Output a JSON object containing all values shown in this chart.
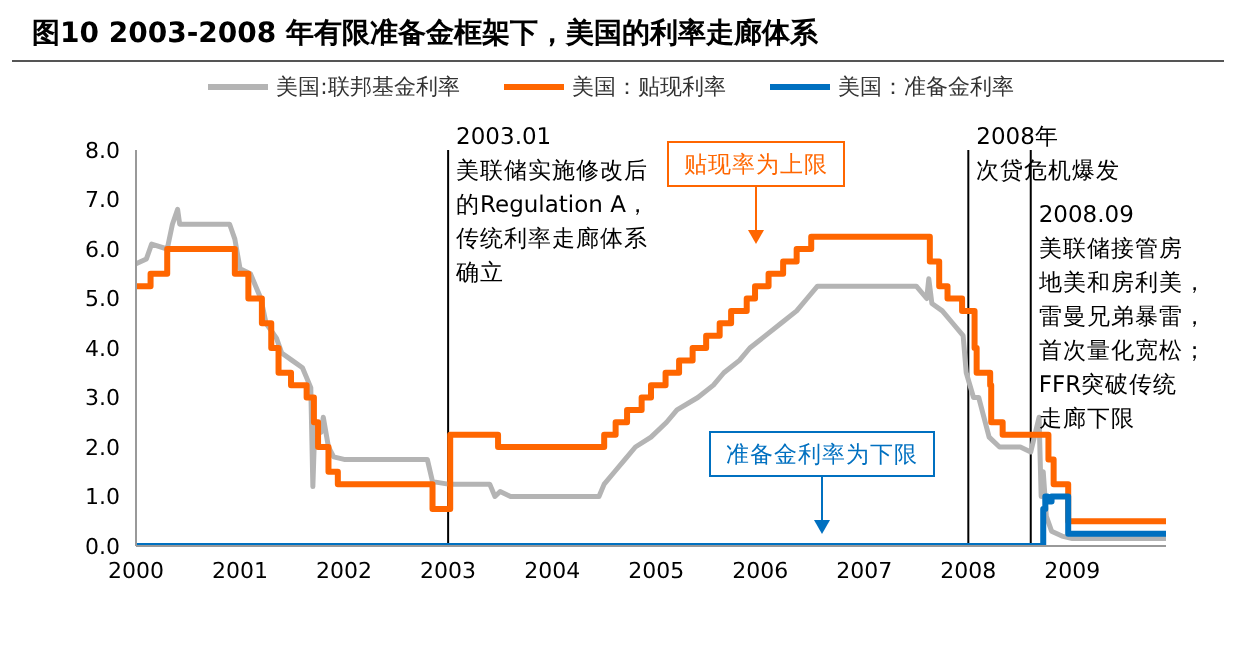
{
  "chart_data": {
    "type": "line",
    "title": "图10 2003-2008 年有限准备金框架下，美国的利率走廊体系",
    "xlim": [
      2000,
      2009.9
    ],
    "xticks": [
      2000,
      2001,
      2002,
      2003,
      2004,
      2005,
      2006,
      2007,
      2008,
      2009
    ],
    "ylim": [
      0,
      8
    ],
    "yticks": [
      {
        "value": 0,
        "label": "0.0"
      },
      {
        "value": 1,
        "label": "1.0"
      },
      {
        "value": 2,
        "label": "2.0"
      },
      {
        "value": 3,
        "label": "3.0"
      },
      {
        "value": 4,
        "label": "4.0"
      },
      {
        "value": 5,
        "label": "5.0"
      },
      {
        "value": 6,
        "label": "6.0"
      },
      {
        "value": 7,
        "label": "7.0"
      },
      {
        "value": 8,
        "label": "8.0"
      }
    ],
    "grid": false,
    "legend": "top",
    "marker": "none",
    "series": [
      {
        "name": "美国:联邦基金利率",
        "color": "#b4b4b4",
        "x": [
          2000.0,
          2000.1,
          2000.15,
          2000.3,
          2000.35,
          2000.4,
          2000.42,
          2000.5,
          2000.9,
          2000.95,
          2001.0,
          2001.1,
          2001.2,
          2001.25,
          2001.35,
          2001.4,
          2001.5,
          2001.6,
          2001.68,
          2001.7,
          2001.72,
          2001.78,
          2001.8,
          2001.85,
          2001.9,
          2002.0,
          2002.5,
          2002.8,
          2002.85,
          2003.0,
          2003.4,
          2003.45,
          2003.5,
          2003.6,
          2004.0,
          2004.45,
          2004.5,
          2004.6,
          2004.7,
          2004.8,
          2004.95,
          2005.1,
          2005.2,
          2005.4,
          2005.55,
          2005.65,
          2005.8,
          2005.9,
          2006.05,
          2006.2,
          2006.35,
          2006.45,
          2006.55,
          2007.0,
          2007.5,
          2007.6,
          2007.62,
          2007.65,
          2007.75,
          2007.85,
          2007.95,
          2007.98,
          2008.05,
          2008.1,
          2008.2,
          2008.3,
          2008.5,
          2008.6,
          2008.68,
          2008.7,
          2008.72,
          2008.75,
          2008.8,
          2008.9,
          2009.0,
          2009.9
        ],
        "values": [
          5.7,
          5.8,
          6.1,
          6.0,
          6.5,
          6.8,
          6.5,
          6.5,
          6.5,
          6.2,
          5.6,
          5.5,
          5.0,
          4.5,
          4.2,
          3.9,
          3.75,
          3.6,
          3.2,
          1.2,
          2.5,
          2.3,
          2.6,
          2.0,
          1.8,
          1.75,
          1.75,
          1.75,
          1.3,
          1.25,
          1.25,
          1.0,
          1.1,
          1.0,
          1.0,
          1.0,
          1.25,
          1.5,
          1.75,
          2.0,
          2.2,
          2.5,
          2.75,
          3.0,
          3.25,
          3.5,
          3.75,
          4.0,
          4.25,
          4.5,
          4.75,
          5.0,
          5.25,
          5.25,
          5.25,
          5.0,
          5.4,
          4.9,
          4.75,
          4.5,
          4.25,
          3.5,
          3.0,
          3.0,
          2.2,
          2.0,
          2.0,
          1.9,
          2.6,
          1.0,
          1.5,
          0.6,
          0.3,
          0.2,
          0.15,
          0.15
        ]
      },
      {
        "name": "美国：贴现利率",
        "color": "#ff6600",
        "type": "step",
        "x": [
          2000.0,
          2000.14,
          2000.3,
          2000.95,
          2001.08,
          2001.21,
          2001.3,
          2001.37,
          2001.49,
          2001.64,
          2001.71,
          2001.75,
          2001.85,
          2001.94,
          2002.85,
          2003.02,
          2003.48,
          2004.5,
          2004.61,
          2004.72,
          2004.86,
          2004.95,
          2005.09,
          2005.22,
          2005.35,
          2005.48,
          2005.61,
          2005.72,
          2005.87,
          2005.95,
          2006.08,
          2006.22,
          2006.35,
          2006.49,
          2007.63,
          2007.72,
          2007.8,
          2007.94,
          2008.06,
          2008.08,
          2008.21,
          2008.22,
          2008.33,
          2008.77,
          2008.82,
          2008.96,
          2009.9
        ],
        "values": [
          5.25,
          5.5,
          6.0,
          5.5,
          5.0,
          4.5,
          4.0,
          3.5,
          3.25,
          3.0,
          2.5,
          2.0,
          1.5,
          1.25,
          0.75,
          2.25,
          2.0,
          2.25,
          2.5,
          2.75,
          3.0,
          3.25,
          3.5,
          3.75,
          4.0,
          4.25,
          4.5,
          4.75,
          5.0,
          5.25,
          5.5,
          5.75,
          6.0,
          6.25,
          5.75,
          5.25,
          5.0,
          4.75,
          4.0,
          3.5,
          3.25,
          2.5,
          2.25,
          1.75,
          1.25,
          0.5,
          0.5
        ]
      },
      {
        "name": "美国：准备金利率",
        "color": "#0070c0",
        "type": "step",
        "x": [
          2000.0,
          2008.72,
          2008.74,
          2008.76,
          2008.8,
          2008.96,
          2009.9
        ],
        "values": [
          0,
          0.75,
          1.0,
          0.9,
          1.0,
          0.25,
          0.25
        ]
      }
    ],
    "ref_lines": [
      {
        "axis": "x",
        "value": 2003.0,
        "label": "2003.01美联储实施修改后的Regulation A，传统利率走廊体系确立",
        "color": "#000000"
      },
      {
        "axis": "x",
        "value": 2008.0,
        "label": "2008年次贷危机爆发",
        "color": "#000000"
      },
      {
        "axis": "x",
        "value": 2008.6,
        "label": "2008.09美联储接管房地美和房利美，雷曼兄弟暴雷，首次量化宽松；FFR突破传统走廊下限",
        "color": "#000000"
      }
    ],
    "annotations": [
      "贴现率为上限",
      "准备金利率为下限"
    ]
  }
}
